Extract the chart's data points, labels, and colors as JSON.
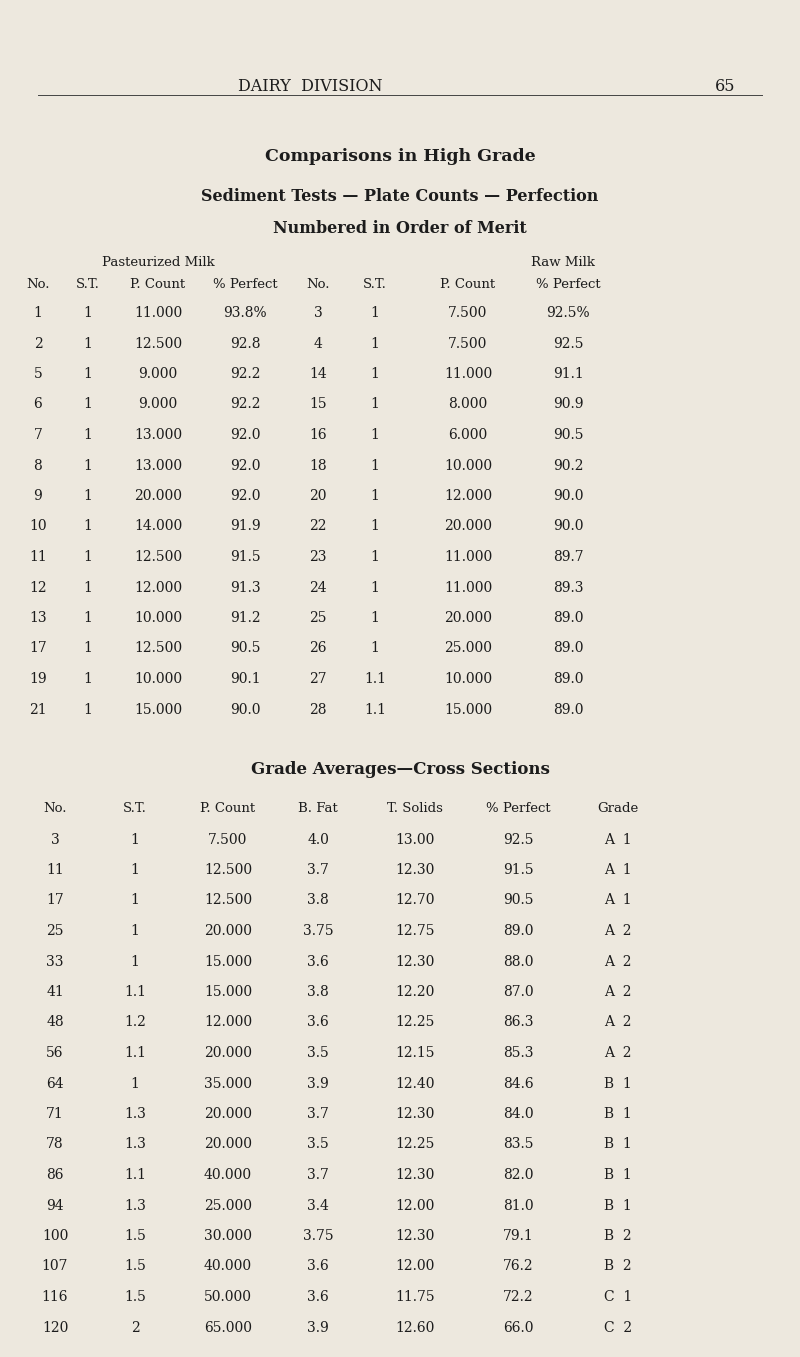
{
  "bg_color": "#ede8de",
  "text_color": "#1a1a1a",
  "page_title": "DAIRY  DIVISION",
  "page_number": "65",
  "title1": "Comparisons in High Grade",
  "title2": "Sediment Tests — Plate Counts — Perfection",
  "title3": "Numbered in Order of Merit",
  "past_label": "Pasteurized Milk",
  "raw_label": "Raw Milk",
  "table1_headers": [
    "No.",
    "S.T.",
    "P. Count",
    "% Perfect",
    "No.",
    "S.T.",
    "P. Count",
    "% Perfect"
  ],
  "table1_rows": [
    [
      "1",
      "1",
      "11.000",
      "93.8%",
      "3",
      "1",
      "7.500",
      "92.5%"
    ],
    [
      "2",
      "1",
      "12.500",
      "92.8",
      "4",
      "1",
      "7.500",
      "92.5"
    ],
    [
      "5",
      "1",
      "9.000",
      "92.2",
      "14",
      "1",
      "11.000",
      "91.1"
    ],
    [
      "6",
      "1",
      "9.000",
      "92.2",
      "15",
      "1",
      "8.000",
      "90.9"
    ],
    [
      "7",
      "1",
      "13.000",
      "92.0",
      "16",
      "1",
      "6.000",
      "90.5"
    ],
    [
      "8",
      "1",
      "13.000",
      "92.0",
      "18",
      "1",
      "10.000",
      "90.2"
    ],
    [
      "9",
      "1",
      "20.000",
      "92.0",
      "20",
      "1",
      "12.000",
      "90.0"
    ],
    [
      "10",
      "1",
      "14.000",
      "91.9",
      "22",
      "1",
      "20.000",
      "90.0"
    ],
    [
      "11",
      "1",
      "12.500",
      "91.5",
      "23",
      "1",
      "11.000",
      "89.7"
    ],
    [
      "12",
      "1",
      "12.000",
      "91.3",
      "24",
      "1",
      "11.000",
      "89.3"
    ],
    [
      "13",
      "1",
      "10.000",
      "91.2",
      "25",
      "1",
      "20.000",
      "89.0"
    ],
    [
      "17",
      "1",
      "12.500",
      "90.5",
      "26",
      "1",
      "25.000",
      "89.0"
    ],
    [
      "19",
      "1",
      "10.000",
      "90.1",
      "27",
      "1.1",
      "10.000",
      "89.0"
    ],
    [
      "21",
      "1",
      "15.000",
      "90.0",
      "28",
      "1.1",
      "15.000",
      "89.0"
    ]
  ],
  "section2_title": "Grade Averages—Cross Sections",
  "table2_headers": [
    "No.",
    "S.T.",
    "P. Count",
    "B. Fat",
    "T. Solids",
    "% Perfect",
    "Grade"
  ],
  "table2_rows": [
    [
      "3",
      "1",
      "7.500",
      "4.0",
      "13.00",
      "92.5",
      "A  1"
    ],
    [
      "11",
      "1",
      "12.500",
      "3.7",
      "12.30",
      "91.5",
      "A  1"
    ],
    [
      "17",
      "1",
      "12.500",
      "3.8",
      "12.70",
      "90.5",
      "A  1"
    ],
    [
      "25",
      "1",
      "20.000",
      "3.75",
      "12.75",
      "89.0",
      "A  2"
    ],
    [
      "33",
      "1",
      "15.000",
      "3.6",
      "12.30",
      "88.0",
      "A  2"
    ],
    [
      "41",
      "1.1",
      "15.000",
      "3.8",
      "12.20",
      "87.0",
      "A  2"
    ],
    [
      "48",
      "1.2",
      "12.000",
      "3.6",
      "12.25",
      "86.3",
      "A  2"
    ],
    [
      "56",
      "1.1",
      "20.000",
      "3.5",
      "12.15",
      "85.3",
      "A  2"
    ],
    [
      "64",
      "1",
      "35.000",
      "3.9",
      "12.40",
      "84.6",
      "B  1"
    ],
    [
      "71",
      "1.3",
      "20.000",
      "3.7",
      "12.30",
      "84.0",
      "B  1"
    ],
    [
      "78",
      "1.3",
      "20.000",
      "3.5",
      "12.25",
      "83.5",
      "B  1"
    ],
    [
      "86",
      "1.1",
      "40.000",
      "3.7",
      "12.30",
      "82.0",
      "B  1"
    ],
    [
      "94",
      "1.3",
      "25.000",
      "3.4",
      "12.00",
      "81.0",
      "B  1"
    ],
    [
      "100",
      "1.5",
      "30.000",
      "3.75",
      "12.30",
      "79.1",
      "B  2"
    ],
    [
      "107",
      "1.5",
      "40.000",
      "3.6",
      "12.00",
      "76.2",
      "B  2"
    ],
    [
      "116",
      "1.5",
      "50.000",
      "3.6",
      "11.75",
      "72.2",
      "C  1"
    ],
    [
      "120",
      "2",
      "65.000",
      "3.9",
      "12.60",
      "66.0",
      "C  2"
    ]
  ]
}
